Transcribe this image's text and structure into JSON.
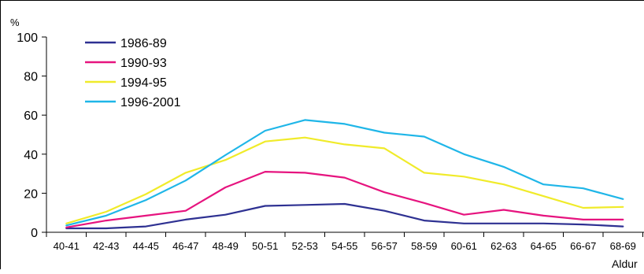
{
  "chart_data": {
    "type": "line",
    "ylabel": "%",
    "xlabel": "Aldur",
    "ylim": [
      0,
      100
    ],
    "yticks": [
      0,
      20,
      40,
      60,
      80,
      100
    ],
    "grid": false,
    "legend_position": "top-left",
    "categories": [
      "40-41",
      "42-43",
      "44-45",
      "46-47",
      "48-49",
      "50-51",
      "52-53",
      "54-55",
      "56-57",
      "58-59",
      "60-61",
      "62-63",
      "64-65",
      "66-67",
      "68-69"
    ],
    "series": [
      {
        "name": "1986-89",
        "color": "#2e3192",
        "values": [
          2,
          2,
          3,
          6.5,
          9,
          13.5,
          14,
          14.5,
          11,
          6,
          4.5,
          4.5,
          4.5,
          4,
          3
        ]
      },
      {
        "name": "1990-93",
        "color": "#e6147f",
        "values": [
          2.5,
          6,
          8.5,
          11,
          23,
          31,
          30.5,
          28,
          20.5,
          15,
          9,
          11.5,
          8.5,
          6.5,
          6.5
        ]
      },
      {
        "name": "1994-95",
        "color": "#f0eb2a",
        "values": [
          4.5,
          10.5,
          19.5,
          30.5,
          37,
          46.5,
          48.5,
          45,
          43,
          30.5,
          28.5,
          24.5,
          18.5,
          12.5,
          13
        ]
      },
      {
        "name": "1996-2001",
        "color": "#1fb6e8",
        "values": [
          3.5,
          8.5,
          16.5,
          26.5,
          39.5,
          52,
          57.5,
          55.5,
          51,
          49,
          40,
          33.5,
          24.5,
          22.5,
          17
        ]
      }
    ]
  }
}
